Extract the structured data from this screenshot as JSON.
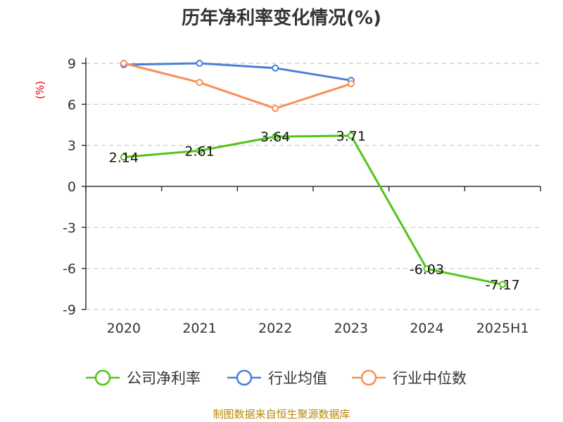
{
  "chart_data": {
    "type": "line",
    "title": "历年净利率变化情况(%)",
    "ylabel": "(%)",
    "categories": [
      "2020",
      "2021",
      "2022",
      "2023",
      "2024",
      "2025H1"
    ],
    "ylim": [
      -9,
      9
    ],
    "yticks": [
      9,
      6,
      3,
      0,
      -3,
      -6,
      -9
    ],
    "grid": true,
    "legend_position": "bottom",
    "series": [
      {
        "name": "公司净利率",
        "color": "#52c41a",
        "values": [
          2.14,
          2.61,
          3.64,
          3.71,
          -6.03,
          -7.17
        ],
        "labels": [
          "2.14",
          "2.61",
          "3.64",
          "3.71",
          "-6.03",
          "-7.17"
        ]
      },
      {
        "name": "行业均值",
        "color": "#4a7fd8",
        "values": [
          8.9,
          9.0,
          8.65,
          7.75,
          null,
          null
        ]
      },
      {
        "name": "行业中位数",
        "color": "#f5905a",
        "values": [
          9.0,
          7.6,
          5.7,
          7.5,
          null,
          null
        ]
      }
    ],
    "source": "制图数据来自恒生聚源数据库"
  }
}
